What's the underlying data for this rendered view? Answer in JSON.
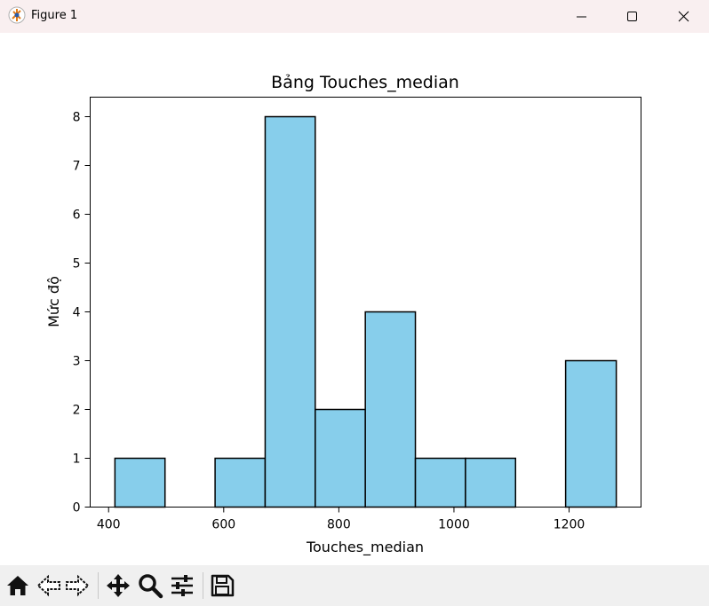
{
  "window": {
    "title": "Figure 1"
  },
  "chart_data": {
    "type": "bar",
    "title": "Bảng Touches_median",
    "xlabel": "Touches_median",
    "ylabel": "Mức độ",
    "bin_edges": [
      411,
      498,
      585,
      672,
      759,
      846,
      933,
      1020,
      1107,
      1194,
      1282
    ],
    "values": [
      1,
      0,
      1,
      8,
      2,
      4,
      1,
      1,
      0,
      3
    ],
    "xlim": [
      368,
      1325
    ],
    "ylim": [
      0,
      8.4
    ],
    "xticks": [
      400,
      600,
      800,
      1000,
      1200
    ],
    "yticks": [
      0,
      1,
      2,
      3,
      4,
      5,
      6,
      7,
      8
    ],
    "bar_color": "#87ceeb",
    "edge_color": "#000000",
    "grid": false
  },
  "toolbar": {
    "buttons": [
      "home-icon",
      "back-icon",
      "forward-icon",
      "pan-icon",
      "zoom-icon",
      "configure-icon",
      "save-icon"
    ]
  }
}
